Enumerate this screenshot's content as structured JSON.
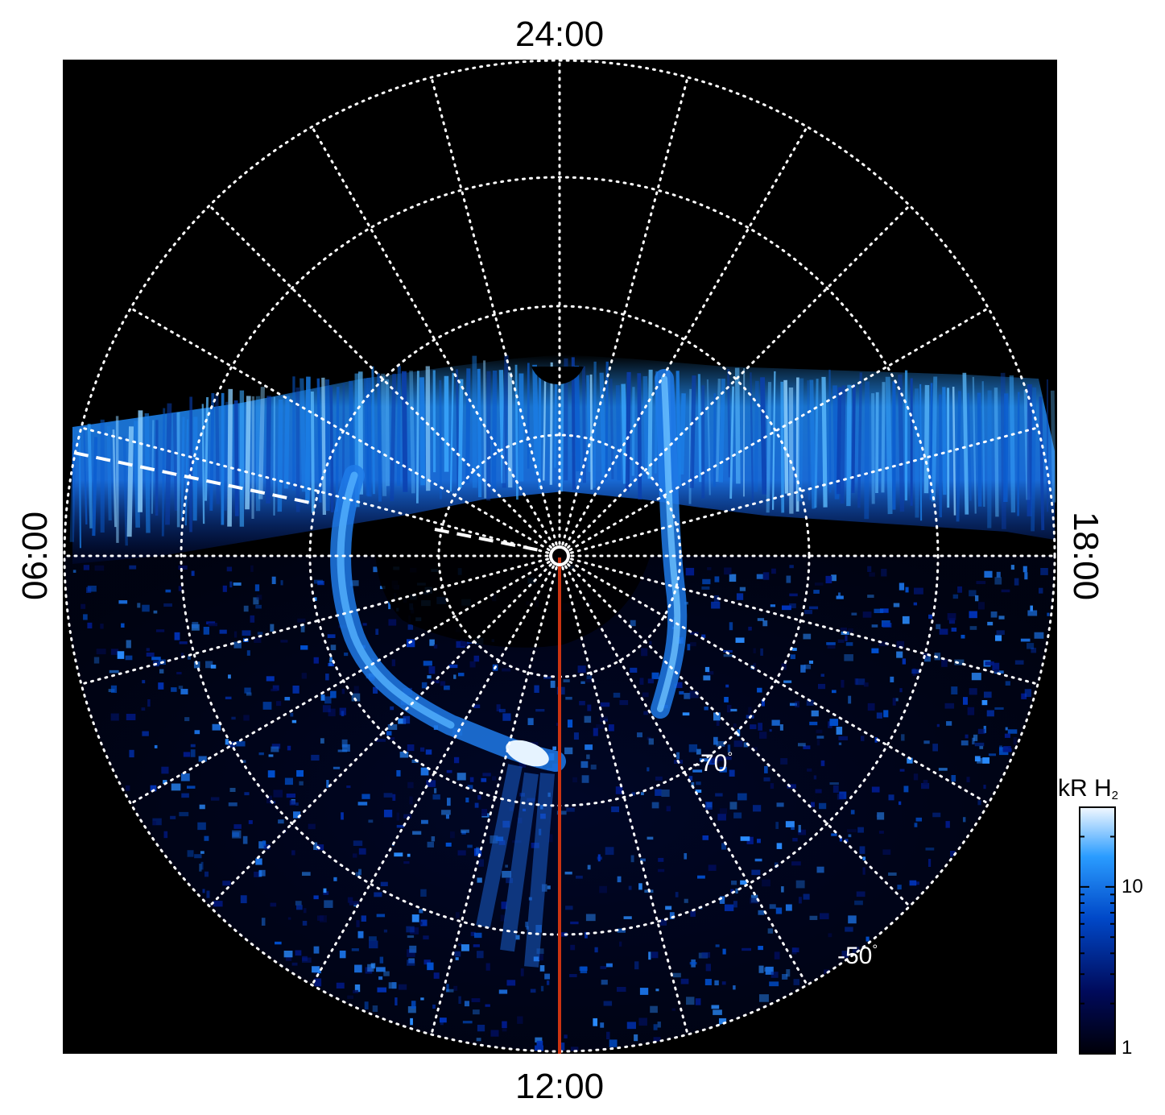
{
  "image": {
    "subject": "polar projection auroral emission map",
    "background_color": "#000000",
    "grid_color": "#ffffff",
    "meridian_color": "#cc3311",
    "colors": {
      "dark": "#000010",
      "deep": "#000a60",
      "mid": "#0050d0",
      "bright": "#2a9cff",
      "pale": "#d8eeff"
    }
  },
  "labels": {
    "top": "24:00",
    "bottom": "12:00",
    "left": "06:00",
    "right": "18:00",
    "lat_inner": "-70",
    "lat_outer": "-50",
    "degree": "°"
  },
  "colorbar": {
    "unit_main": "kR H",
    "unit_sub": "2",
    "tick_mid": "10",
    "tick_low": "1",
    "min": 1,
    "max": 30,
    "scale": "log"
  }
}
